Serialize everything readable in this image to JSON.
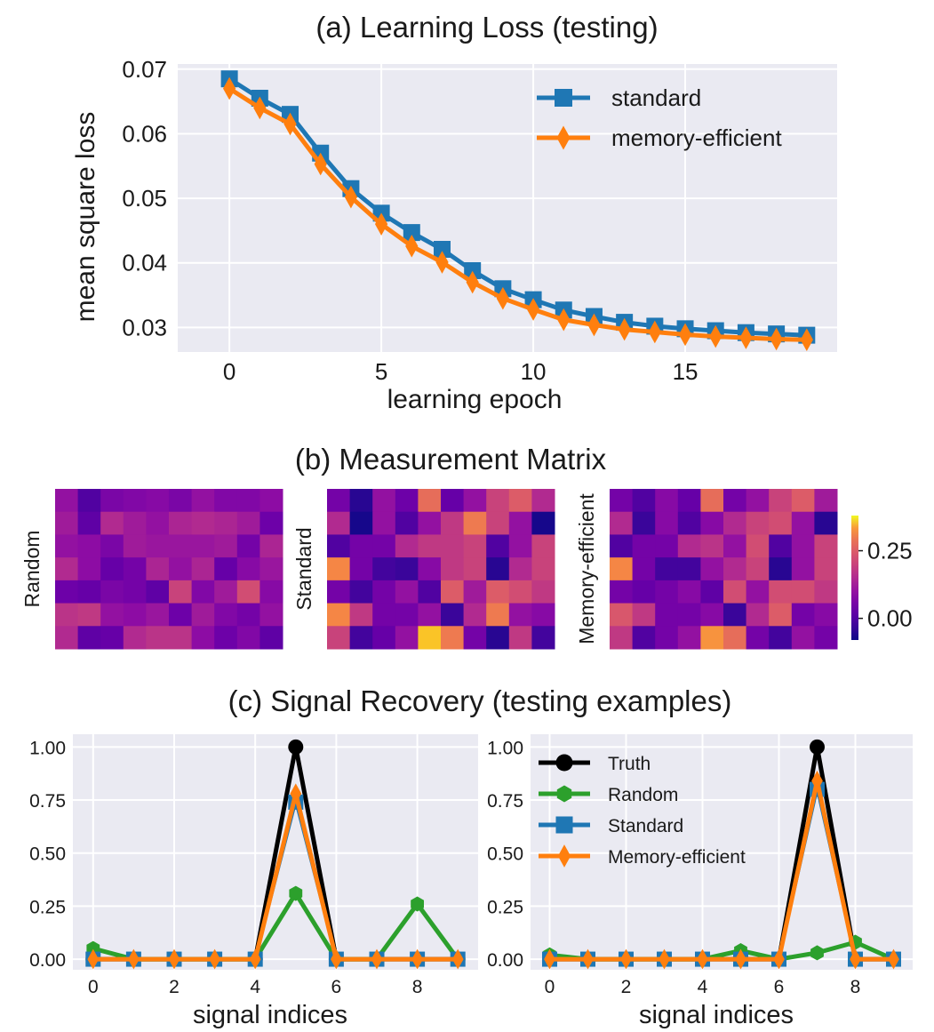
{
  "colors": {
    "panel_bg": "#eaeaf2",
    "grid": "#ffffff",
    "standard": "#1f77b4",
    "memory_efficient": "#ff7f0e",
    "truth": "#000000",
    "random": "#2ca02c"
  },
  "chart_data": [
    {
      "id": "loss",
      "type": "line",
      "title": "(a) Learning Loss (testing)",
      "xlabel": "learning epoch",
      "ylabel": "mean square loss",
      "xlim": [
        -1.7,
        20
      ],
      "ylim": [
        0.0262,
        0.0708
      ],
      "xticks": [
        "0",
        "5",
        "10",
        "15"
      ],
      "yticks": [
        "0.03",
        "0.04",
        "0.05",
        "0.06",
        "0.07"
      ],
      "grid": true,
      "legend": "upper right",
      "x": [
        0,
        1,
        2,
        3,
        4,
        5,
        6,
        7,
        8,
        9,
        10,
        11,
        12,
        13,
        14,
        15,
        16,
        17,
        18,
        19
      ],
      "series": [
        {
          "name": "standard",
          "marker": "square",
          "values": [
            0.0685,
            0.0655,
            0.063,
            0.057,
            0.0515,
            0.0477,
            0.0447,
            0.0421,
            0.0388,
            0.036,
            0.0343,
            0.0327,
            0.0317,
            0.0308,
            0.0302,
            0.0298,
            0.0295,
            0.0292,
            0.029,
            0.0288
          ]
        },
        {
          "name": "memory-efficient",
          "marker": "diamond",
          "values": [
            0.067,
            0.064,
            0.0615,
            0.0553,
            0.0502,
            0.046,
            0.0426,
            0.0401,
            0.037,
            0.0345,
            0.0328,
            0.0312,
            0.0304,
            0.0297,
            0.0293,
            0.0289,
            0.0286,
            0.0284,
            0.0282,
            0.0281
          ]
        }
      ]
    },
    {
      "id": "matrices",
      "type": "heatmap",
      "title": "(b) Measurement Matrix",
      "colorbar_ticks": [
        "0.25",
        "0.00"
      ],
      "colorbar_values": [
        0.25,
        0.0
      ],
      "vmin": -0.08,
      "vmax": 0.38,
      "panels": [
        {
          "label": "Random",
          "rows": [
            [
              0.1,
              0.0,
              0.06,
              0.07,
              0.08,
              0.06,
              0.1,
              0.07,
              0.07,
              0.09
            ],
            [
              0.12,
              0.02,
              0.15,
              0.12,
              0.1,
              0.14,
              0.15,
              0.14,
              0.12,
              0.04
            ],
            [
              0.1,
              0.09,
              0.06,
              0.12,
              0.11,
              0.11,
              0.11,
              0.12,
              0.05,
              0.14
            ],
            [
              0.15,
              0.09,
              0.03,
              0.05,
              0.14,
              0.1,
              0.14,
              0.03,
              0.08,
              0.11
            ],
            [
              0.04,
              0.03,
              0.06,
              0.05,
              0.02,
              0.2,
              0.07,
              0.12,
              0.22,
              0.08
            ],
            [
              0.17,
              0.18,
              0.1,
              0.09,
              0.11,
              0.04,
              0.12,
              0.07,
              0.05,
              0.1
            ],
            [
              0.15,
              0.02,
              0.03,
              0.15,
              0.17,
              0.17,
              0.09,
              0.04,
              0.07,
              0.02
            ]
          ]
        },
        {
          "label": "Standard",
          "rows": [
            [
              0.05,
              -0.05,
              0.1,
              0.04,
              0.28,
              0.03,
              0.1,
              0.2,
              0.25,
              0.15
            ],
            [
              0.15,
              -0.07,
              0.1,
              0.0,
              0.1,
              0.18,
              0.3,
              0.2,
              0.1,
              -0.07
            ],
            [
              0.0,
              0.05,
              0.05,
              0.15,
              0.18,
              0.18,
              0.2,
              0.0,
              0.1,
              0.2
            ],
            [
              0.32,
              0.05,
              -0.02,
              -0.03,
              0.08,
              0.18,
              0.2,
              -0.05,
              0.15,
              0.2
            ],
            [
              0.05,
              -0.02,
              0.05,
              0.1,
              0.0,
              0.25,
              0.12,
              0.25,
              0.22,
              0.18
            ],
            [
              0.32,
              0.18,
              0.05,
              0.05,
              0.1,
              -0.03,
              0.15,
              0.3,
              0.1,
              0.08
            ],
            [
              0.2,
              -0.02,
              0.03,
              0.1,
              0.36,
              0.3,
              0.05,
              -0.05,
              0.18,
              -0.02
            ]
          ]
        },
        {
          "label": "Memory-efficient",
          "rows": [
            [
              0.05,
              0.0,
              0.08,
              0.03,
              0.28,
              0.05,
              0.1,
              0.2,
              0.25,
              0.12
            ],
            [
              0.15,
              -0.03,
              0.08,
              0.0,
              0.08,
              0.15,
              0.2,
              0.22,
              0.1,
              -0.05
            ],
            [
              0.0,
              0.05,
              0.05,
              0.15,
              0.17,
              0.1,
              0.22,
              0.0,
              0.1,
              0.2
            ],
            [
              0.32,
              0.05,
              -0.02,
              -0.02,
              0.1,
              0.15,
              0.2,
              -0.05,
              0.1,
              0.2
            ],
            [
              0.05,
              0.03,
              0.05,
              0.08,
              0.02,
              0.22,
              0.1,
              0.22,
              0.22,
              0.18
            ],
            [
              0.24,
              0.18,
              0.05,
              0.05,
              0.08,
              -0.03,
              0.15,
              0.25,
              0.05,
              0.08
            ],
            [
              0.18,
              0.0,
              0.05,
              0.1,
              0.33,
              0.28,
              0.05,
              -0.02,
              0.1,
              0.05
            ]
          ]
        }
      ]
    },
    {
      "id": "recovery",
      "type": "line",
      "title": "(c) Signal Recovery (testing examples)",
      "panels": [
        {
          "xlabel": "signal indices",
          "xlim": [
            -0.5,
            9.5
          ],
          "ylim": [
            -0.05,
            1.06
          ],
          "xticks": [
            "0",
            "2",
            "4",
            "6",
            "8"
          ],
          "yticks": [
            "0.00",
            "0.25",
            "0.50",
            "0.75",
            "1.00"
          ],
          "grid": true,
          "x": [
            0,
            1,
            2,
            3,
            4,
            5,
            6,
            7,
            8,
            9
          ],
          "series": [
            {
              "key": "truth",
              "marker": "circle",
              "values": [
                0,
                0,
                0,
                0,
                0,
                1.0,
                0,
                0,
                0,
                0
              ]
            },
            {
              "key": "random",
              "marker": "hexagon",
              "values": [
                0.05,
                0,
                0,
                0,
                0,
                0.31,
                0,
                0,
                0.26,
                0
              ]
            },
            {
              "key": "standard",
              "marker": "square",
              "values": [
                0,
                0,
                0,
                0,
                0,
                0.74,
                0,
                0,
                0,
                0
              ]
            },
            {
              "key": "memory_efficient",
              "marker": "diamond",
              "values": [
                0,
                0,
                0,
                0,
                0,
                0.78,
                0,
                0,
                0,
                0
              ]
            }
          ]
        },
        {
          "xlabel": "signal indices",
          "xlim": [
            -0.5,
            9.5
          ],
          "ylim": [
            -0.05,
            1.06
          ],
          "xticks": [
            "0",
            "2",
            "4",
            "6",
            "8"
          ],
          "yticks": [
            "0.00",
            "0.25",
            "0.50",
            "0.75",
            "1.00"
          ],
          "grid": true,
          "legend": "upper left",
          "legend_entries": [
            {
              "key": "truth",
              "name": "Truth"
            },
            {
              "key": "random",
              "name": "Random"
            },
            {
              "key": "standard",
              "name": "Standard"
            },
            {
              "key": "memory_efficient",
              "name": "Memory-efficient"
            }
          ],
          "x": [
            0,
            1,
            2,
            3,
            4,
            5,
            6,
            7,
            8,
            9
          ],
          "series": [
            {
              "key": "truth",
              "marker": "circle",
              "values": [
                0,
                0,
                0,
                0,
                0,
                0,
                0,
                1.0,
                0,
                0
              ]
            },
            {
              "key": "random",
              "marker": "hexagon",
              "values": [
                0.02,
                0,
                0,
                0,
                0,
                0.04,
                0,
                0.03,
                0.08,
                0
              ]
            },
            {
              "key": "standard",
              "marker": "square",
              "values": [
                0,
                0,
                0,
                0,
                0,
                0,
                0,
                0.8,
                0,
                0
              ]
            },
            {
              "key": "memory_efficient",
              "marker": "diamond",
              "values": [
                0,
                0,
                0,
                0,
                0,
                0,
                0,
                0.84,
                0,
                0
              ]
            }
          ]
        }
      ]
    }
  ]
}
